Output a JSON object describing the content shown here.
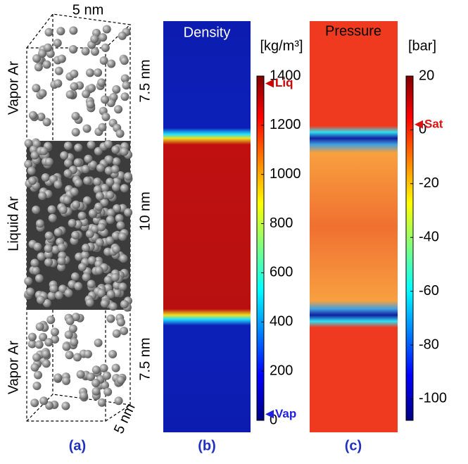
{
  "panel_a": {
    "top_width": "5 nm",
    "depth": "5 nm",
    "heights": [
      "7.5 nm",
      "10 nm",
      "7.5 nm"
    ],
    "phases": [
      "Vapor Ar",
      "Liquid Ar",
      "Vapor Ar"
    ],
    "caption": "(a)"
  },
  "panel_b": {
    "title": "Density",
    "unit": "[kg/m³]",
    "clim": [
      0,
      1400
    ],
    "ticks": [
      0,
      200,
      400,
      600,
      800,
      1000,
      1200,
      1400
    ],
    "markers": [
      {
        "label": "Liq",
        "value": 1370,
        "color": "#d00000"
      },
      {
        "label": "Vap",
        "value": 25,
        "color": "#2020e0"
      }
    ],
    "caption": "(b)"
  },
  "panel_c": {
    "title": "Pressure",
    "unit": "[bar]",
    "clim": [
      -108,
      20
    ],
    "ticks": [
      -100,
      -80,
      -60,
      -40,
      -20,
      0,
      20
    ],
    "markers": [
      {
        "label": "Sat",
        "value": 2,
        "color": "#e01010"
      }
    ],
    "caption": "(c)"
  }
}
